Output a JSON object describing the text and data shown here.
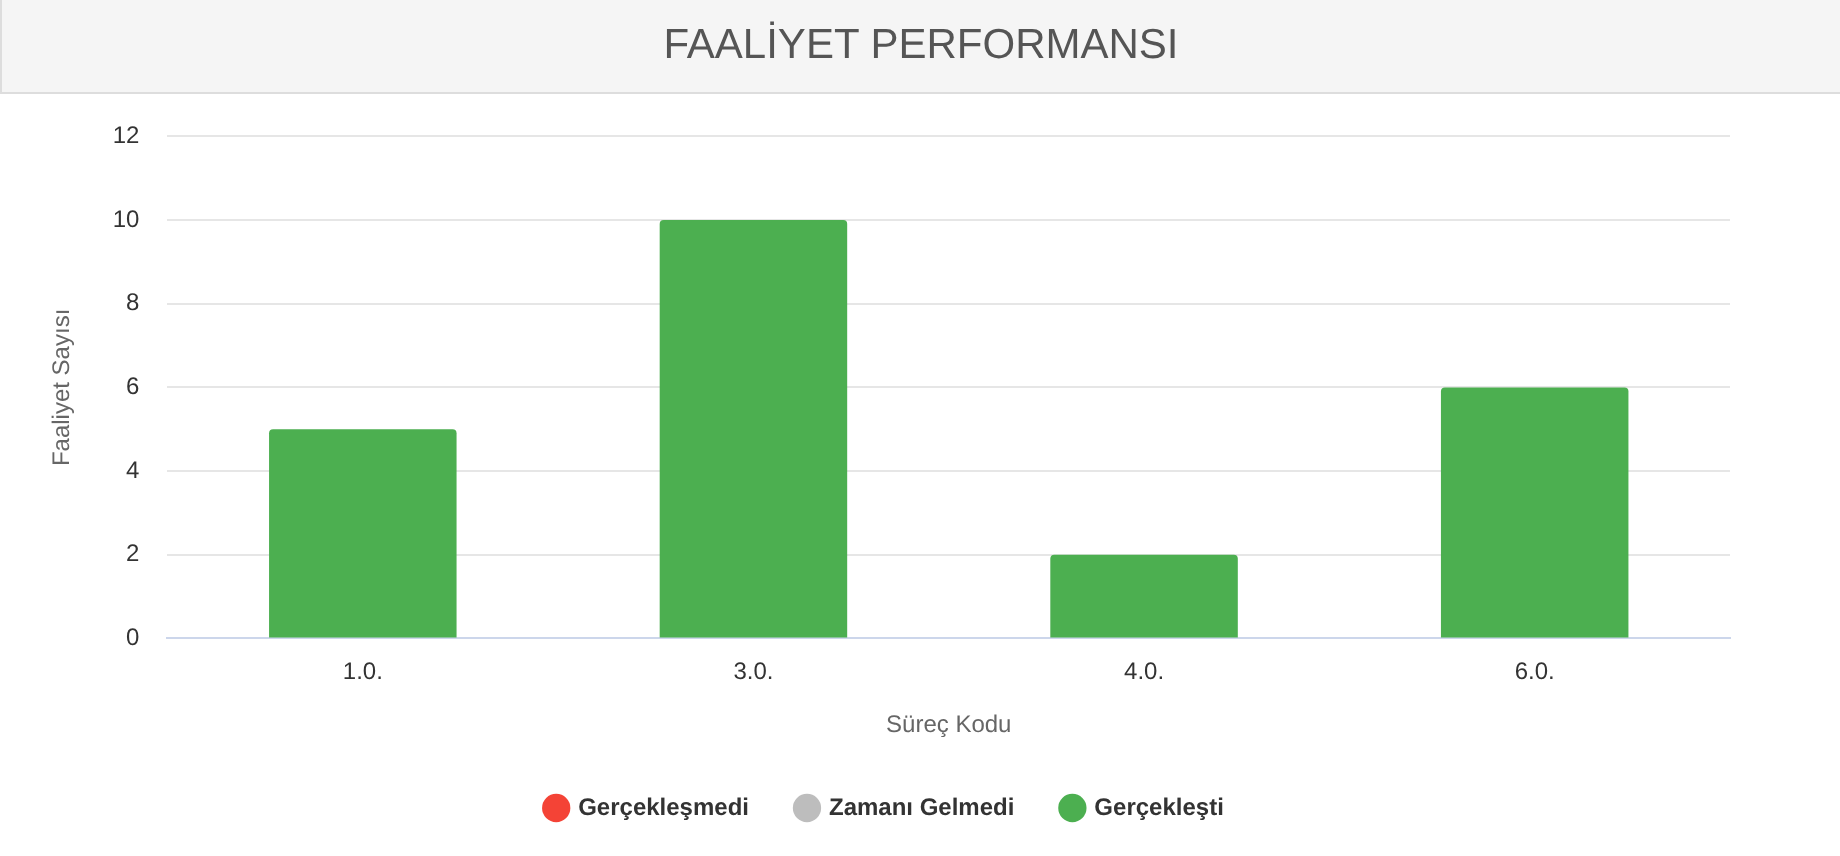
{
  "chart_data": {
    "type": "bar",
    "title": "FAALİYET PERFORMANSI",
    "xlabel": "Süreç Kodu",
    "ylabel": "Faaliyet Sayısı",
    "categories": [
      "1.0.",
      "3.0.",
      "4.0.",
      "6.0."
    ],
    "series": [
      {
        "name": "Gerçekleşmedi",
        "color": "#f44336",
        "values": [
          0,
          0,
          0,
          0
        ]
      },
      {
        "name": "Zamanı Gelmedi",
        "color": "#bdbdbd",
        "values": [
          0,
          0,
          0,
          0
        ]
      },
      {
        "name": "Gerçekleşti",
        "color": "#4caf50",
        "values": [
          5,
          10,
          2,
          6
        ]
      }
    ],
    "stacked": true,
    "ylim": [
      0,
      12
    ],
    "yticks": [
      0,
      2,
      4,
      6,
      8,
      10,
      12
    ],
    "grid": "y",
    "legend": "bottom",
    "marker": "circle"
  }
}
